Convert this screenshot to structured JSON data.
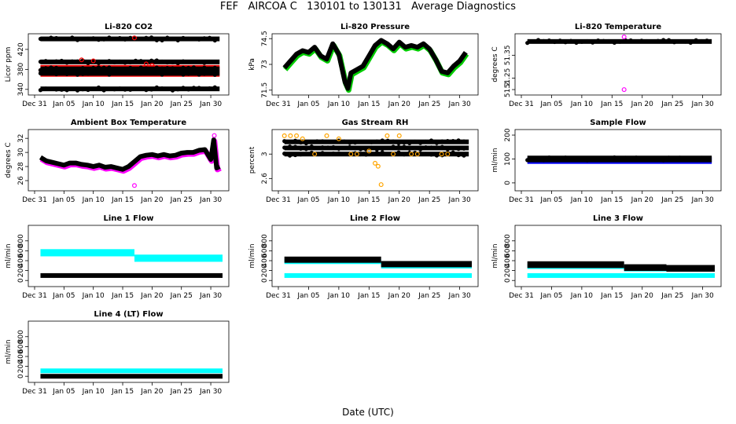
{
  "page": {
    "title": "FEF   AIRCOA C   130101 to 130131   Average Diagnostics",
    "xlabel": "Date (UTC)"
  },
  "colors": {
    "black": "#000000",
    "red": "#ff0000",
    "green": "#00cc00",
    "magenta": "#ff00ff",
    "orange": "#ffa500",
    "blue": "#0000ff",
    "cyan": "#00ffff"
  },
  "chart_data": [
    {
      "name": "li820-co2",
      "type": "scatter",
      "title": "Li-820 CO2",
      "ylabel": "Licor ppm",
      "xlim": [
        0,
        32
      ],
      "ylim": [
        335,
        445
      ],
      "yticks": [
        340,
        380,
        420
      ],
      "xticks": [
        "Dec 31",
        "Jan 05",
        "Jan 10",
        "Jan 15",
        "Jan 20",
        "Jan 25",
        "Jan 30"
      ],
      "series": [
        {
          "name": "ref-high",
          "color": "black",
          "band": [
            441,
            441
          ]
        },
        {
          "name": "ref-mid",
          "color": "black",
          "band": [
            395,
            395
          ]
        },
        {
          "name": "sample",
          "color": "red",
          "band": [
            370,
            384
          ],
          "outliers": [
            [
              8,
              399
            ],
            [
              10,
              397
            ],
            [
              17,
              443
            ],
            [
              19,
              391
            ],
            [
              20,
              388
            ]
          ]
        },
        {
          "name": "ref-low-1",
          "color": "black",
          "band": [
            381,
            381
          ]
        },
        {
          "name": "ref-low-2",
          "color": "black",
          "band": [
            372,
            372
          ]
        },
        {
          "name": "ref-bottom",
          "color": "black",
          "band": [
            341,
            341
          ]
        }
      ]
    },
    {
      "name": "li820-pressure",
      "type": "line",
      "title": "Li-820 Pressure",
      "ylabel": "kPa",
      "xlim": [
        0,
        32
      ],
      "ylim": [
        71.4,
        74.6
      ],
      "yticks": [
        71.5,
        73.0,
        74.5
      ],
      "xticks": [
        "Dec 31",
        "Jan 05",
        "Jan 10",
        "Jan 15",
        "Jan 20",
        "Jan 25",
        "Jan 30"
      ],
      "series": [
        {
          "name": "pressure",
          "color": "black",
          "shadow": "green",
          "x": [
            1,
            2,
            3,
            4,
            5,
            6,
            7,
            8,
            9,
            10,
            11,
            11.5,
            12,
            13,
            14,
            15,
            16,
            17,
            18,
            19,
            20,
            21,
            22,
            23,
            24,
            25,
            26,
            27,
            28,
            29,
            30,
            31
          ],
          "y": [
            72.8,
            73.2,
            73.6,
            73.8,
            73.7,
            74.0,
            73.5,
            73.3,
            74.2,
            73.6,
            72.0,
            71.6,
            72.5,
            72.7,
            72.9,
            73.5,
            74.1,
            74.4,
            74.2,
            73.9,
            74.3,
            74.0,
            74.1,
            74.0,
            74.2,
            73.9,
            73.3,
            72.6,
            72.5,
            72.9,
            73.2,
            73.7
          ]
        }
      ]
    },
    {
      "name": "li820-temperature",
      "type": "scatter",
      "title": "Li-820 Temperature",
      "ylabel": "degrees C",
      "xlim": [
        0,
        32
      ],
      "ylim": [
        51.19,
        51.43
      ],
      "yticks": [
        51.2,
        51.25,
        51.35
      ],
      "xticks": [
        "Dec 31",
        "Jan 05",
        "Jan 10",
        "Jan 15",
        "Jan 20",
        "Jan 25",
        "Jan 30"
      ],
      "series": [
        {
          "name": "temp",
          "color": "black",
          "band": [
            51.41,
            51.41
          ]
        },
        {
          "name": "outlier",
          "color": "magenta",
          "outliers": [
            [
              17,
              51.43
            ],
            [
              17,
              51.2
            ]
          ]
        }
      ]
    },
    {
      "name": "ambient-box-temperature",
      "type": "line",
      "title": "Ambient Box Temperature",
      "ylabel": "degrees C",
      "xlim": [
        0,
        32
      ],
      "ylim": [
        25.0,
        32.8
      ],
      "yticks": [
        26,
        28,
        30,
        32
      ],
      "xticks": [
        "Dec 31",
        "Jan 05",
        "Jan 10",
        "Jan 15",
        "Jan 20",
        "Jan 25",
        "Jan 30"
      ],
      "series": [
        {
          "name": "box-temp",
          "color": "black",
          "shadow": "magenta",
          "x": [
            1,
            2,
            3,
            4,
            5,
            6,
            7,
            8,
            9,
            10,
            11,
            12,
            13,
            14,
            15,
            16,
            17,
            18,
            19,
            20,
            21,
            22,
            23,
            24,
            25,
            26,
            27,
            28,
            29,
            30,
            30.5,
            31,
            31.5
          ],
          "y": [
            29.3,
            28.8,
            28.6,
            28.4,
            28.2,
            28.5,
            28.5,
            28.3,
            28.2,
            28.0,
            28.2,
            27.9,
            28.0,
            27.8,
            27.6,
            28.0,
            28.7,
            29.4,
            29.6,
            29.7,
            29.5,
            29.7,
            29.5,
            29.6,
            29.9,
            30.0,
            30.0,
            30.3,
            30.4,
            29.0,
            31.8,
            27.8,
            28.0
          ]
        },
        {
          "name": "outlier",
          "color": "magenta",
          "outliers": [
            [
              17,
              25.3
            ],
            [
              30.6,
              32.4
            ]
          ]
        }
      ]
    },
    {
      "name": "gas-stream-rh",
      "type": "scatter",
      "title": "Gas Stream RH",
      "ylabel": "percent",
      "xlim": [
        0,
        32
      ],
      "ylim": [
        2.45,
        3.35
      ],
      "yticks": [
        2.6,
        3.0
      ],
      "xticks": [
        "Dec 31",
        "Jan 05",
        "Jan 10",
        "Jan 15",
        "Jan 20",
        "Jan 25",
        "Jan 30"
      ],
      "series": [
        {
          "name": "rh-main",
          "color": "black",
          "band": [
            3.1,
            3.1
          ]
        },
        {
          "name": "rh-high",
          "color": "black",
          "band": [
            3.2,
            3.2
          ]
        },
        {
          "name": "rh-low",
          "color": "black",
          "band": [
            3.0,
            3.0
          ]
        },
        {
          "name": "rh-orange",
          "color": "orange",
          "outliers": [
            [
              1,
              3.3
            ],
            [
              2,
              3.3
            ],
            [
              3,
              3.3
            ],
            [
              4,
              3.25
            ],
            [
              6,
              3.0
            ],
            [
              8,
              3.3
            ],
            [
              10,
              3.25
            ],
            [
              12,
              3.0
            ],
            [
              13,
              3.0
            ],
            [
              15,
              3.05
            ],
            [
              16,
              2.85
            ],
            [
              16.5,
              2.8
            ],
            [
              17,
              2.5
            ],
            [
              18,
              3.3
            ],
            [
              19,
              3.0
            ],
            [
              20,
              3.3
            ],
            [
              22,
              3.0
            ],
            [
              23,
              3.0
            ],
            [
              27,
              3.0
            ],
            [
              28,
              3.0
            ]
          ]
        }
      ]
    },
    {
      "name": "sample-flow",
      "type": "scatter",
      "title": "Sample Flow",
      "ylabel": "ml/min",
      "xlim": [
        0,
        32
      ],
      "ylim": [
        -20,
        210
      ],
      "yticks": [
        0,
        100,
        200
      ],
      "xticks": [
        "Dec 31",
        "Jan 05",
        "Jan 10",
        "Jan 15",
        "Jan 20",
        "Jan 25",
        "Jan 30"
      ],
      "series": [
        {
          "name": "flow",
          "color": "black",
          "shadow": "blue",
          "band": [
            96,
            104
          ]
        }
      ]
    },
    {
      "name": "line1-flow",
      "type": "scatter",
      "title": "Line 1 Flow",
      "ylabel": "ml/min",
      "xlim": [
        0,
        32
      ],
      "ylim": [
        -60,
        1050
      ],
      "yticks": [
        0,
        200,
        400,
        600,
        800
      ],
      "xticks": [
        "Dec 31",
        "Jan 05",
        "Jan 10",
        "Jan 15",
        "Jan 20",
        "Jan 25",
        "Jan 30"
      ],
      "series": [
        {
          "name": "cyan-flow",
          "color": "cyan",
          "steps": [
            [
              1,
              17,
              560
            ],
            [
              17,
              32,
              450
            ]
          ],
          "band": [
            -25,
            25
          ]
        },
        {
          "name": "black-flow",
          "color": "black",
          "steps": [
            [
              1,
              32,
              100
            ]
          ],
          "band": [
            0,
            0
          ]
        }
      ]
    },
    {
      "name": "line2-flow",
      "type": "scatter",
      "title": "Line 2 Flow",
      "ylabel": "ml/min",
      "xlim": [
        0,
        32
      ],
      "ylim": [
        -60,
        1050
      ],
      "yticks": [
        0,
        200,
        400,
        600,
        800
      ],
      "xticks": [
        "Dec 31",
        "Jan 05",
        "Jan 10",
        "Jan 15",
        "Jan 20",
        "Jan 25",
        "Jan 30"
      ],
      "series": [
        {
          "name": "cyan-high",
          "color": "cyan",
          "steps": [
            [
              1,
              17,
              380
            ],
            [
              17,
              32,
              290
            ]
          ],
          "band": [
            0,
            0
          ]
        },
        {
          "name": "cyan-low",
          "color": "cyan",
          "steps": [
            [
              1,
              32,
              100
            ]
          ],
          "band": [
            0,
            0
          ]
        },
        {
          "name": "black-flow",
          "color": "black",
          "steps": [
            [
              1,
              17,
              420
            ],
            [
              17,
              32,
              330
            ]
          ],
          "band": [
            -15,
            15
          ]
        }
      ]
    },
    {
      "name": "line3-flow",
      "type": "scatter",
      "title": "Line 3 Flow",
      "ylabel": "ml/min",
      "xlim": [
        0,
        32
      ],
      "ylim": [
        -60,
        1050
      ],
      "yticks": [
        0,
        200,
        400,
        600,
        800
      ],
      "xticks": [
        "Dec 31",
        "Jan 05",
        "Jan 10",
        "Jan 15",
        "Jan 20",
        "Jan 25",
        "Jan 30"
      ],
      "series": [
        {
          "name": "cyan-high",
          "color": "cyan",
          "steps": [
            [
              1,
              17,
              280
            ],
            [
              17,
              32,
              230
            ]
          ],
          "band": [
            0,
            0
          ]
        },
        {
          "name": "cyan-low",
          "color": "cyan",
          "steps": [
            [
              1,
              32,
              100
            ]
          ],
          "band": [
            0,
            0
          ]
        },
        {
          "name": "black-flow",
          "color": "black",
          "steps": [
            [
              1,
              17,
              320
            ],
            [
              17,
              24,
              260
            ],
            [
              24,
              32,
              245
            ]
          ],
          "band": [
            -20,
            20
          ]
        }
      ]
    },
    {
      "name": "line4-flow",
      "type": "scatter",
      "title": "Line 4 (LT) Flow",
      "ylabel": "ml/min",
      "xlim": [
        0,
        32
      ],
      "ylim": [
        -60,
        1050
      ],
      "yticks": [
        0,
        200,
        400,
        600,
        800
      ],
      "xticks": [
        "Dec 31",
        "Jan 05",
        "Jan 10",
        "Jan 15",
        "Jan 20",
        "Jan 25",
        "Jan 30"
      ],
      "series": [
        {
          "name": "cyan-flow",
          "color": "cyan",
          "steps": [
            [
              1,
              32,
              110
            ]
          ],
          "band": [
            0,
            0
          ]
        },
        {
          "name": "black-flow",
          "color": "black",
          "steps": [
            [
              1,
              32,
              0
            ]
          ],
          "band": [
            0,
            0
          ]
        }
      ]
    }
  ]
}
